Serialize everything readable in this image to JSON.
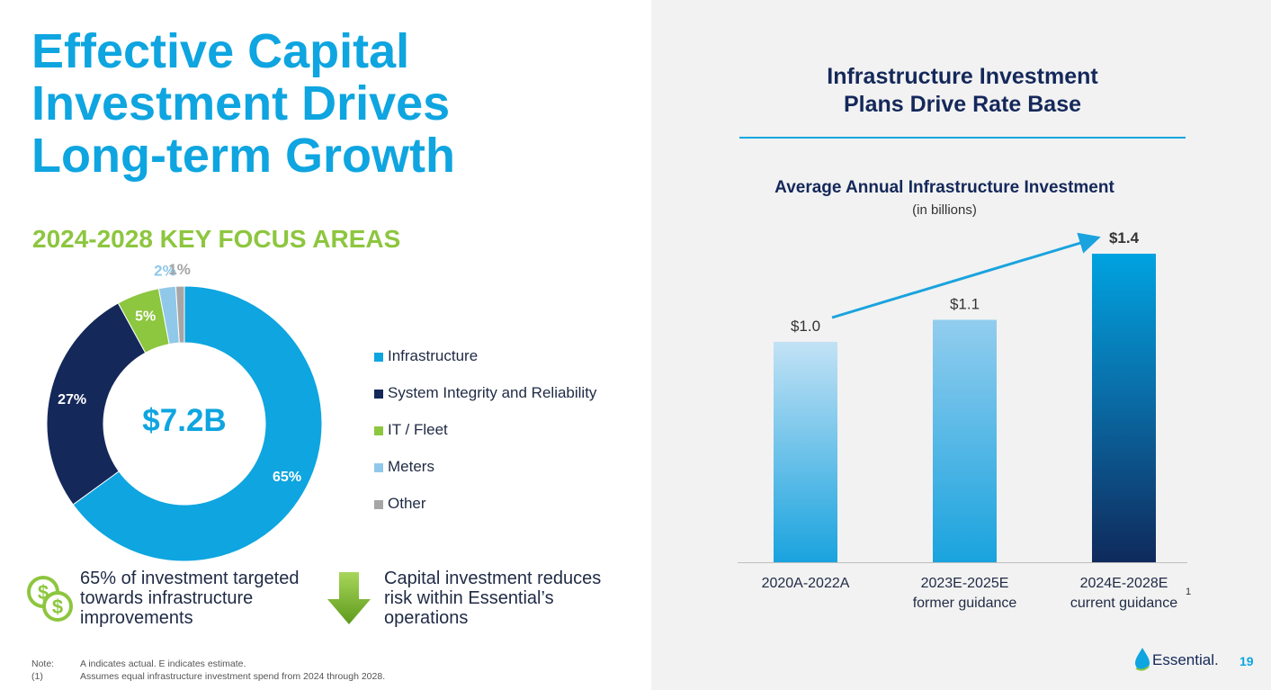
{
  "title": {
    "line1": "Effective Capital",
    "line2": "Investment Drives",
    "line3": "Long-term Growth"
  },
  "focus_title": "2024-2028 KEY FOCUS AREAS",
  "donut_center": "$7.2B",
  "callouts": {
    "left": "65% of investment targeted towards infrastructure improvements",
    "right": "Capital investment reduces risk within Essential’s operations"
  },
  "notes": [
    {
      "key": "Note:",
      "text": "A indicates actual. E indicates estimate."
    },
    {
      "key": "(1)",
      "text": "Assumes equal infrastructure investment spend from 2024 through 2028."
    }
  ],
  "chart_header": {
    "line1": "Infrastructure Investment",
    "line2": "Plans Drive Rate Base"
  },
  "footnote_marker": "1",
  "logo_text": "Essential.",
  "page_number": "19",
  "icons": [
    "coins-dollar-icon",
    "arrow-down-icon",
    "water-drop-logo-icon"
  ],
  "colors": {
    "accent_blue": "#0ea5e0",
    "navy": "#14285a",
    "green": "#8dc63f"
  },
  "chart_data": [
    {
      "type": "pie",
      "title": "2024-2028 KEY FOCUS AREAS",
      "donut": true,
      "center_label": "$7.2B",
      "legend_position": "right",
      "categories": [
        "Infrastructure",
        "System Integrity and Reliability",
        "IT / Fleet",
        "Meters",
        "Other"
      ],
      "values": [
        65,
        27,
        5,
        2,
        1
      ],
      "labels": [
        "65%",
        "27%",
        "5%",
        "2%",
        "1%"
      ],
      "colors": [
        "#0ea5e0",
        "#14285a",
        "#8dc63f",
        "#90c8ea",
        "#a6a6a6"
      ]
    },
    {
      "type": "bar",
      "title": "Average Annual Infrastructure Investment",
      "subtitle": "(in billions)",
      "categories": [
        "2020A-2022A",
        "2023E-2025E former guidance",
        "2024E-2028E current guidance"
      ],
      "category_lines": [
        [
          "2020A-2022A"
        ],
        [
          "2023E-2025E",
          "former guidance"
        ],
        [
          "2024E-2028E",
          "current guidance"
        ]
      ],
      "values": [
        1.0,
        1.1,
        1.4
      ],
      "data_labels": [
        "$1.0",
        "$1.1",
        "$1.4"
      ],
      "ylim": [
        0,
        1.5
      ],
      "grid": false,
      "trend_arrow": true
    }
  ]
}
